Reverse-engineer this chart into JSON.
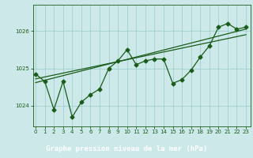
{
  "title": "Graphe pression niveau de la mer (hPa)",
  "background_color": "#cce8e8",
  "grid_color": "#99cccc",
  "line_color": "#1a5c1a",
  "title_bg_color": "#1a5c1a",
  "title_text_color": "#ffffff",
  "x_ticks": [
    0,
    1,
    2,
    3,
    4,
    5,
    6,
    7,
    8,
    9,
    10,
    11,
    12,
    13,
    14,
    15,
    16,
    17,
    18,
    19,
    20,
    21,
    22,
    23
  ],
  "y_ticks": [
    1024,
    1025,
    1026
  ],
  "ylim": [
    1023.45,
    1026.7
  ],
  "xlim": [
    -0.3,
    23.5
  ],
  "data_x": [
    0,
    1,
    2,
    3,
    4,
    5,
    6,
    7,
    8,
    9,
    10,
    11,
    12,
    13,
    14,
    15,
    16,
    17,
    18,
    19,
    20,
    21,
    22,
    23
  ],
  "data_y": [
    1024.85,
    1024.65,
    1023.9,
    1024.65,
    1023.7,
    1024.1,
    1024.3,
    1024.45,
    1025.0,
    1025.2,
    1025.5,
    1025.1,
    1025.2,
    1025.25,
    1025.25,
    1024.6,
    1024.7,
    1024.95,
    1025.3,
    1025.6,
    1026.1,
    1026.2,
    1026.05,
    1026.1
  ],
  "trend1_x": [
    0,
    23
  ],
  "trend1_y": [
    1024.62,
    1026.05
  ],
  "trend2_x": [
    0,
    23
  ],
  "trend2_y": [
    1024.72,
    1025.9
  ],
  "marker_size": 2.5,
  "linewidth": 0.9,
  "title_fontsize": 6.5,
  "tick_fontsize": 5.0
}
